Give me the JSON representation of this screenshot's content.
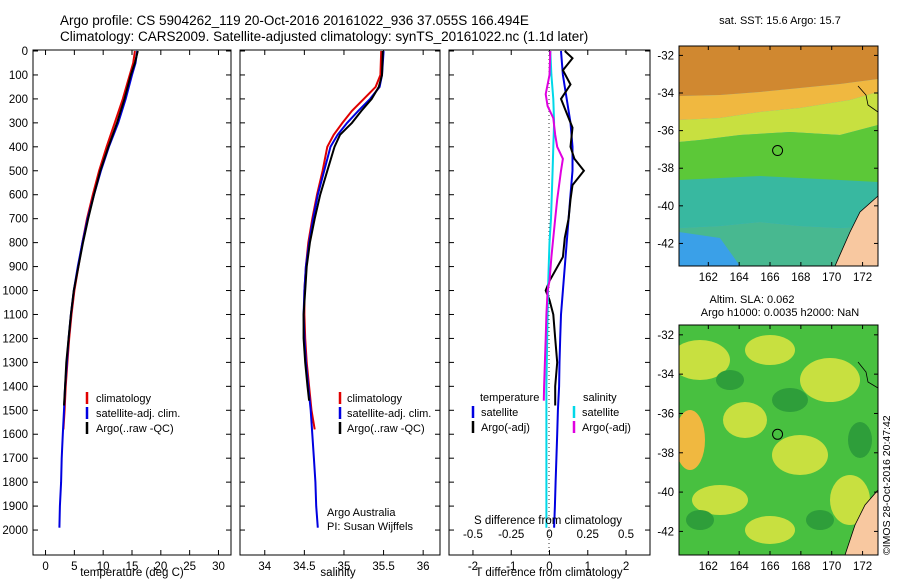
{
  "header": {
    "line1": "Argo profile: CS 5904262_119 20-Oct-2016 20161022_936 37.055S 166.494E",
    "line2": "Climatology: CARS2009. Satellite-adjusted climatology: synTS_20161022.nc (1.1d later)"
  },
  "credit": {
    "line1": "Argo Australia",
    "line2": "PI: Susan Wijffels",
    "watermark": "©IMOS 28-Oct-2016 20:47:42"
  },
  "chart_data": [
    {
      "type": "line",
      "id": "temperature",
      "xlabel": "temperature (deg C)",
      "xlim": [
        -2,
        32
      ],
      "xticks": [
        0,
        5,
        10,
        15,
        20,
        25,
        30
      ],
      "ylim": [
        2100,
        0
      ],
      "yticks": [
        0,
        100,
        200,
        300,
        400,
        500,
        600,
        700,
        800,
        900,
        1000,
        1100,
        1200,
        1300,
        1400,
        1500,
        1600,
        1700,
        1800,
        1900,
        2000
      ],
      "legend": [
        "climatology",
        "satellite-adj. clim.",
        "Argo(..raw -QC)"
      ],
      "series": [
        {
          "name": "climatology",
          "color": "#e00000",
          "points": [
            [
              15.5,
              0
            ],
            [
              15.2,
              50
            ],
            [
              14.6,
              100
            ],
            [
              13.4,
              200
            ],
            [
              12.0,
              300
            ],
            [
              10.6,
              400
            ],
            [
              9.3,
              500
            ],
            [
              8.2,
              600
            ],
            [
              7.2,
              700
            ],
            [
              6.4,
              800
            ],
            [
              5.7,
              900
            ],
            [
              5.0,
              1000
            ],
            [
              4.5,
              1100
            ],
            [
              4.1,
              1200
            ],
            [
              3.8,
              1300
            ],
            [
              3.5,
              1400
            ],
            [
              3.3,
              1500
            ],
            [
              3.1,
              1580
            ]
          ]
        },
        {
          "name": "satellite-adj. clim.",
          "color": "#0000e0",
          "points": [
            [
              15.9,
              0
            ],
            [
              15.6,
              50
            ],
            [
              15.0,
              100
            ],
            [
              13.9,
              200
            ],
            [
              12.6,
              300
            ],
            [
              11.0,
              400
            ],
            [
              9.6,
              500
            ],
            [
              8.4,
              600
            ],
            [
              7.3,
              700
            ],
            [
              6.4,
              800
            ],
            [
              5.6,
              900
            ],
            [
              4.9,
              1000
            ],
            [
              4.4,
              1100
            ],
            [
              4.0,
              1200
            ],
            [
              3.7,
              1300
            ],
            [
              3.4,
              1400
            ],
            [
              3.2,
              1500
            ],
            [
              3.0,
              1600
            ],
            [
              2.8,
              1700
            ],
            [
              2.7,
              1800
            ],
            [
              2.5,
              1900
            ],
            [
              2.4,
              1990
            ]
          ]
        },
        {
          "name": "Argo(..raw -QC)",
          "color": "#000000",
          "points": [
            [
              16.0,
              0
            ],
            [
              15.5,
              50
            ],
            [
              14.8,
              100
            ],
            [
              13.7,
              200
            ],
            [
              12.4,
              300
            ],
            [
              10.9,
              400
            ],
            [
              9.5,
              500
            ],
            [
              8.4,
              600
            ],
            [
              7.4,
              700
            ],
            [
              6.5,
              800
            ],
            [
              5.7,
              900
            ],
            [
              4.9,
              1000
            ],
            [
              4.4,
              1100
            ],
            [
              4.0,
              1200
            ],
            [
              3.6,
              1300
            ],
            [
              3.4,
              1400
            ],
            [
              3.2,
              1480
            ]
          ]
        }
      ]
    },
    {
      "type": "line",
      "id": "salinity",
      "xlabel": "salinity",
      "xlim": [
        33.7,
        36.2
      ],
      "xticks": [
        34,
        34.5,
        35,
        35.5,
        36
      ],
      "xtick_labels": [
        "34",
        "34.5",
        "35",
        "35.5",
        "36"
      ],
      "ylim": [
        2100,
        0
      ],
      "legend": [
        "climatology",
        "satellite-adj. clim.",
        "Argo(..raw -QC)"
      ],
      "series": [
        {
          "name": "climatology",
          "color": "#e00000",
          "points": [
            [
              35.47,
              0
            ],
            [
              35.46,
              100
            ],
            [
              35.4,
              150
            ],
            [
              35.25,
              200
            ],
            [
              35.1,
              250
            ],
            [
              34.98,
              300
            ],
            [
              34.87,
              350
            ],
            [
              34.79,
              400
            ],
            [
              34.73,
              500
            ],
            [
              34.66,
              600
            ],
            [
              34.6,
              700
            ],
            [
              34.55,
              800
            ],
            [
              34.52,
              900
            ],
            [
              34.5,
              1000
            ],
            [
              34.5,
              1100
            ],
            [
              34.51,
              1200
            ],
            [
              34.53,
              1300
            ],
            [
              34.56,
              1400
            ],
            [
              34.59,
              1500
            ],
            [
              34.63,
              1580
            ]
          ]
        },
        {
          "name": "satellite-adj. clim.",
          "color": "#0000e0",
          "points": [
            [
              35.5,
              0
            ],
            [
              35.48,
              100
            ],
            [
              35.45,
              150
            ],
            [
              35.33,
              200
            ],
            [
              35.18,
              250
            ],
            [
              35.04,
              300
            ],
            [
              34.92,
              350
            ],
            [
              34.83,
              400
            ],
            [
              34.75,
              500
            ],
            [
              34.67,
              600
            ],
            [
              34.61,
              700
            ],
            [
              34.56,
              800
            ],
            [
              34.52,
              900
            ],
            [
              34.5,
              1000
            ],
            [
              34.49,
              1100
            ],
            [
              34.5,
              1200
            ],
            [
              34.52,
              1300
            ],
            [
              34.55,
              1400
            ],
            [
              34.58,
              1500
            ],
            [
              34.6,
              1600
            ],
            [
              34.62,
              1700
            ],
            [
              34.64,
              1800
            ],
            [
              34.65,
              1900
            ],
            [
              34.67,
              1990
            ]
          ]
        },
        {
          "name": "Argo(..raw -QC)",
          "color": "#000000",
          "points": [
            [
              35.49,
              0
            ],
            [
              35.48,
              100
            ],
            [
              35.44,
              150
            ],
            [
              35.35,
              200
            ],
            [
              35.22,
              250
            ],
            [
              35.1,
              300
            ],
            [
              34.95,
              350
            ],
            [
              34.88,
              400
            ],
            [
              34.79,
              500
            ],
            [
              34.7,
              600
            ],
            [
              34.63,
              700
            ],
            [
              34.57,
              800
            ],
            [
              34.53,
              900
            ],
            [
              34.51,
              1000
            ],
            [
              34.49,
              1100
            ],
            [
              34.49,
              1200
            ],
            [
              34.51,
              1300
            ],
            [
              34.54,
              1400
            ],
            [
              34.56,
              1460
            ]
          ]
        }
      ]
    },
    {
      "type": "line",
      "id": "difference",
      "xlabel": "T difference from climatology",
      "top_label": "S difference from climatology",
      "xlim": [
        -2.6,
        2.6
      ],
      "xticks": [
        -2,
        -1,
        0,
        1,
        2
      ],
      "s_xticks": [
        -0.5,
        -0.25,
        0,
        0.25,
        0.5
      ],
      "s_xtick_labels": [
        "-0.5",
        "-0.25",
        "0",
        "0.25",
        "0.5"
      ],
      "ylim": [
        2100,
        0
      ],
      "legend_titles": [
        "temperature",
        "salinity"
      ],
      "legend": [
        [
          "satellite",
          "Argo(-adj)"
        ],
        [
          "satellite",
          "Argo(-adj)"
        ]
      ],
      "series": [
        {
          "name": "temperature satellite",
          "color": "#0000e0",
          "points": [
            [
              0.3,
              0
            ],
            [
              0.35,
              100
            ],
            [
              0.45,
              200
            ],
            [
              0.55,
              300
            ],
            [
              0.6,
              400
            ],
            [
              0.6,
              500
            ],
            [
              0.55,
              600
            ],
            [
              0.5,
              700
            ],
            [
              0.45,
              800
            ],
            [
              0.4,
              900
            ],
            [
              0.35,
              1000
            ],
            [
              0.3,
              1100
            ],
            [
              0.28,
              1200
            ],
            [
              0.26,
              1300
            ],
            [
              0.25,
              1400
            ],
            [
              0.22,
              1500
            ],
            [
              0.2,
              1600
            ],
            [
              0.18,
              1700
            ],
            [
              0.16,
              1800
            ],
            [
              0.14,
              1900
            ],
            [
              0.12,
              1990
            ]
          ]
        },
        {
          "name": "temperature Argo(-adj)",
          "color": "#000000",
          "points": [
            [
              0.4,
              0
            ],
            [
              0.6,
              30
            ],
            [
              0.35,
              80
            ],
            [
              0.55,
              140
            ],
            [
              0.3,
              200
            ],
            [
              0.45,
              260
            ],
            [
              0.6,
              320
            ],
            [
              0.55,
              400
            ],
            [
              0.65,
              450
            ],
            [
              0.9,
              500
            ],
            [
              0.6,
              560
            ],
            [
              0.55,
              620
            ],
            [
              0.5,
              700
            ],
            [
              0.4,
              780
            ],
            [
              0.35,
              860
            ],
            [
              0.0,
              960
            ],
            [
              -0.1,
              1000
            ],
            [
              0.0,
              1040
            ],
            [
              0.1,
              1100
            ],
            [
              0.15,
              1200
            ],
            [
              0.2,
              1300
            ],
            [
              0.15,
              1400
            ],
            [
              0.15,
              1480
            ]
          ]
        },
        {
          "name": "salinity satellite",
          "color": "#00d8e8",
          "points": [
            [
              0.02,
              0
            ],
            [
              0.05,
              100
            ],
            [
              0.1,
              200
            ],
            [
              0.12,
              300
            ],
            [
              0.1,
              400
            ],
            [
              0.08,
              500
            ],
            [
              0.06,
              600
            ],
            [
              0.04,
              700
            ],
            [
              0.0,
              800
            ],
            [
              -0.02,
              900
            ],
            [
              -0.04,
              1000
            ],
            [
              -0.05,
              1100
            ],
            [
              -0.06,
              1200
            ],
            [
              -0.07,
              1300
            ],
            [
              -0.08,
              1400
            ],
            [
              -0.08,
              1500
            ],
            [
              -0.08,
              1600
            ],
            [
              -0.08,
              1700
            ],
            [
              -0.08,
              1800
            ],
            [
              -0.08,
              1900
            ],
            [
              -0.08,
              1990
            ]
          ]
        },
        {
          "name": "salinity Argo(-adj)",
          "color": "#e000e0",
          "points": [
            [
              0.02,
              0
            ],
            [
              0.0,
              100
            ],
            [
              -0.1,
              180
            ],
            [
              -0.05,
              230
            ],
            [
              0.1,
              280
            ],
            [
              0.15,
              350
            ],
            [
              0.2,
              400
            ],
            [
              0.35,
              450
            ],
            [
              0.3,
              500
            ],
            [
              0.25,
              560
            ],
            [
              0.2,
              620
            ],
            [
              0.15,
              700
            ],
            [
              0.1,
              780
            ],
            [
              0.05,
              860
            ],
            [
              0.0,
              960
            ],
            [
              -0.05,
              1000
            ],
            [
              -0.08,
              1100
            ],
            [
              -0.1,
              1200
            ],
            [
              -0.12,
              1300
            ],
            [
              -0.14,
              1400
            ],
            [
              -0.15,
              1460
            ]
          ]
        }
      ]
    },
    {
      "type": "heatmap",
      "id": "sst-map",
      "title": "sat. SST: 15.6 Argo: 15.7",
      "xticks": [
        162,
        164,
        166,
        168,
        170,
        172
      ],
      "yticks": [
        -32,
        -34,
        -36,
        -38,
        -40,
        -42
      ],
      "xlim": [
        160.1,
        173.0
      ],
      "ylim": [
        -43.2,
        -31.5
      ],
      "float_position": [
        166.49,
        -37.06
      ]
    },
    {
      "type": "heatmap",
      "id": "sla-map",
      "title": "Altim. SLA: 0.062",
      "subtitle": "Argo h1000: 0.0035 h2000: NaN",
      "xticks": [
        162,
        164,
        166,
        168,
        170,
        172
      ],
      "yticks": [
        -32,
        -34,
        -36,
        -38,
        -40,
        -42
      ],
      "xlim": [
        160.1,
        173.0
      ],
      "ylim": [
        -43.2,
        -31.5
      ],
      "float_position": [
        166.49,
        -37.06
      ]
    }
  ]
}
